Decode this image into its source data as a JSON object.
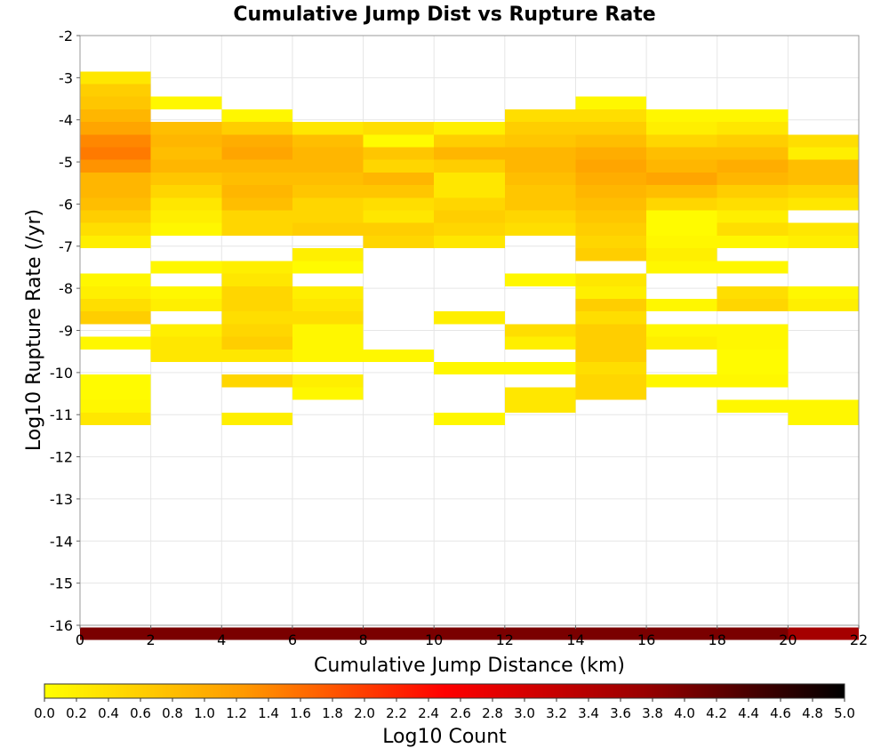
{
  "chart_data": {
    "type": "heatmap",
    "title": "Cumulative Jump Dist vs Rupture Rate",
    "xlabel": "Cumulative Jump Distance (km)",
    "ylabel": "Log10 Rupture Rate (/yr)",
    "xlim": [
      0,
      22
    ],
    "ylim": [
      -16,
      -2
    ],
    "xticks": [
      "0",
      "2",
      "4",
      "6",
      "8",
      "10",
      "12",
      "14",
      "16",
      "18",
      "20",
      "22"
    ],
    "yticks": [
      "-2",
      "-3",
      "-4",
      "-5",
      "-6",
      "-7",
      "-8",
      "-9",
      "-10",
      "-11",
      "-12",
      "-13",
      "-14",
      "-15",
      "-16"
    ],
    "x_bin_width": 2,
    "y_bin_height": 0.3,
    "grid": true,
    "colorbar": {
      "label": "Log10 Count",
      "min": 0,
      "max": 5,
      "ticks": [
        "0.0",
        "0.2",
        "0.4",
        "0.6",
        "0.8",
        "1.0",
        "1.2",
        "1.4",
        "1.6",
        "1.8",
        "2.0",
        "2.2",
        "2.4",
        "2.6",
        "2.8",
        "3.0",
        "3.2",
        "3.4",
        "3.6",
        "3.8",
        "4.0",
        "4.2",
        "4.4",
        "4.6",
        "4.8",
        "5.0"
      ],
      "colors": [
        "#ffff00",
        "#ff9900",
        "#ff0000",
        "#990000",
        "#000000"
      ]
    },
    "columns": [
      {
        "x": 0,
        "cells": [
          [
            -3.0,
            0.3
          ],
          [
            -3.3,
            0.6
          ],
          [
            -3.6,
            0.7
          ],
          [
            -3.9,
            0.9
          ],
          [
            -4.2,
            1.1
          ],
          [
            -4.5,
            1.4
          ],
          [
            -4.8,
            1.5
          ],
          [
            -5.1,
            1.3
          ],
          [
            -5.4,
            0.9
          ],
          [
            -5.7,
            0.9
          ],
          [
            -6.0,
            0.8
          ],
          [
            -6.3,
            0.6
          ],
          [
            -6.6,
            0.4
          ],
          [
            -6.9,
            0.2
          ],
          [
            -7.8,
            0.1
          ],
          [
            -8.1,
            0.2
          ],
          [
            -8.4,
            0.4
          ],
          [
            -8.7,
            0.6
          ],
          [
            -9.3,
            0.1
          ],
          [
            -10.2,
            0.05
          ],
          [
            -10.5,
            0.05
          ],
          [
            -10.8,
            0.1
          ],
          [
            -11.1,
            0.3
          ],
          [
            -16.2,
            4.0
          ]
        ]
      },
      {
        "x": 2,
        "cells": [
          [
            -3.6,
            0.1
          ],
          [
            -4.2,
            0.8
          ],
          [
            -4.5,
            0.9
          ],
          [
            -4.8,
            0.8
          ],
          [
            -5.1,
            0.9
          ],
          [
            -5.4,
            0.7
          ],
          [
            -5.7,
            0.5
          ],
          [
            -6.0,
            0.3
          ],
          [
            -6.3,
            0.2
          ],
          [
            -6.6,
            0.1
          ],
          [
            -7.5,
            0.1
          ],
          [
            -8.1,
            0.1
          ],
          [
            -8.4,
            0.2
          ],
          [
            -9.0,
            0.2
          ],
          [
            -9.3,
            0.3
          ],
          [
            -9.6,
            0.3
          ],
          [
            -16.2,
            4.0
          ]
        ]
      },
      {
        "x": 4,
        "cells": [
          [
            -3.9,
            0.1
          ],
          [
            -4.2,
            0.6
          ],
          [
            -4.5,
            1.0
          ],
          [
            -4.8,
            1.1
          ],
          [
            -5.1,
            0.9
          ],
          [
            -5.4,
            0.8
          ],
          [
            -5.7,
            0.9
          ],
          [
            -6.0,
            0.8
          ],
          [
            -6.3,
            0.5
          ],
          [
            -6.6,
            0.5
          ],
          [
            -7.5,
            0.2
          ],
          [
            -7.8,
            0.3
          ],
          [
            -8.1,
            0.5
          ],
          [
            -8.4,
            0.5
          ],
          [
            -8.7,
            0.4
          ],
          [
            -9.0,
            0.5
          ],
          [
            -9.3,
            0.6
          ],
          [
            -9.6,
            0.3
          ],
          [
            -10.2,
            0.5
          ],
          [
            -11.1,
            0.2
          ],
          [
            -16.2,
            4.0
          ]
        ]
      },
      {
        "x": 6,
        "cells": [
          [
            -4.2,
            0.3
          ],
          [
            -4.5,
            0.8
          ],
          [
            -4.8,
            0.9
          ],
          [
            -5.1,
            0.9
          ],
          [
            -5.4,
            0.8
          ],
          [
            -5.7,
            0.7
          ],
          [
            -6.0,
            0.5
          ],
          [
            -6.3,
            0.5
          ],
          [
            -6.6,
            0.6
          ],
          [
            -7.2,
            0.2
          ],
          [
            -7.5,
            0.05
          ],
          [
            -8.1,
            0.2
          ],
          [
            -8.4,
            0.3
          ],
          [
            -8.7,
            0.4
          ],
          [
            -9.0,
            0.1
          ],
          [
            -9.3,
            0.1
          ],
          [
            -9.6,
            0.1
          ],
          [
            -10.2,
            0.2
          ],
          [
            -10.5,
            0.1
          ],
          [
            -16.2,
            4.0
          ]
        ]
      },
      {
        "x": 8,
        "cells": [
          [
            -4.2,
            0.4
          ],
          [
            -4.5,
            0.05
          ],
          [
            -4.8,
            0.7
          ],
          [
            -5.1,
            0.5
          ],
          [
            -5.4,
            0.9
          ],
          [
            -5.7,
            0.7
          ],
          [
            -6.0,
            0.4
          ],
          [
            -6.3,
            0.3
          ],
          [
            -6.6,
            0.6
          ],
          [
            -6.9,
            0.5
          ],
          [
            -9.6,
            0.1
          ],
          [
            -16.2,
            4.0
          ]
        ]
      },
      {
        "x": 10,
        "cells": [
          [
            -4.2,
            0.2
          ],
          [
            -4.5,
            0.6
          ],
          [
            -4.8,
            0.9
          ],
          [
            -5.1,
            0.6
          ],
          [
            -5.4,
            0.3
          ],
          [
            -5.7,
            0.3
          ],
          [
            -6.0,
            0.5
          ],
          [
            -6.3,
            0.6
          ],
          [
            -6.6,
            0.5
          ],
          [
            -6.9,
            0.3
          ],
          [
            -8.7,
            0.2
          ],
          [
            -9.9,
            0.1
          ],
          [
            -11.1,
            0.1
          ],
          [
            -16.2,
            4.0
          ]
        ]
      },
      {
        "x": 12,
        "cells": [
          [
            -3.9,
            0.4
          ],
          [
            -4.2,
            0.6
          ],
          [
            -4.5,
            0.7
          ],
          [
            -4.8,
            0.9
          ],
          [
            -5.1,
            0.9
          ],
          [
            -5.4,
            0.8
          ],
          [
            -5.7,
            0.7
          ],
          [
            -6.0,
            0.7
          ],
          [
            -6.3,
            0.5
          ],
          [
            -6.6,
            0.4
          ],
          [
            -7.8,
            0.1
          ],
          [
            -9.0,
            0.4
          ],
          [
            -9.3,
            0.2
          ],
          [
            -9.9,
            0.1
          ],
          [
            -10.5,
            0.3
          ],
          [
            -10.8,
            0.3
          ],
          [
            -16.2,
            4.0
          ]
        ]
      },
      {
        "x": 14,
        "cells": [
          [
            -3.6,
            0.1
          ],
          [
            -3.9,
            0.4
          ],
          [
            -4.2,
            0.6
          ],
          [
            -4.5,
            0.8
          ],
          [
            -4.8,
            1.0
          ],
          [
            -5.1,
            1.1
          ],
          [
            -5.4,
            1.0
          ],
          [
            -5.7,
            0.9
          ],
          [
            -6.0,
            0.8
          ],
          [
            -6.3,
            0.7
          ],
          [
            -6.6,
            0.6
          ],
          [
            -6.9,
            0.5
          ],
          [
            -7.2,
            0.6
          ],
          [
            -7.8,
            0.3
          ],
          [
            -8.1,
            0.2
          ],
          [
            -8.4,
            0.6
          ],
          [
            -8.7,
            0.4
          ],
          [
            -9.0,
            0.6
          ],
          [
            -9.3,
            0.6
          ],
          [
            -9.6,
            0.6
          ],
          [
            -9.9,
            0.4
          ],
          [
            -10.2,
            0.5
          ],
          [
            -10.5,
            0.5
          ],
          [
            -16.2,
            4.0
          ]
        ]
      },
      {
        "x": 16,
        "cells": [
          [
            -3.9,
            0.1
          ],
          [
            -4.2,
            0.2
          ],
          [
            -4.5,
            0.5
          ],
          [
            -4.8,
            0.8
          ],
          [
            -5.1,
            0.9
          ],
          [
            -5.4,
            1.1
          ],
          [
            -5.7,
            0.8
          ],
          [
            -6.0,
            0.5
          ],
          [
            -6.3,
            0.05
          ],
          [
            -6.6,
            0.05
          ],
          [
            -6.9,
            0.1
          ],
          [
            -7.2,
            0.2
          ],
          [
            -7.5,
            0.1
          ],
          [
            -8.4,
            0.1
          ],
          [
            -9.0,
            0.1
          ],
          [
            -9.3,
            0.2
          ],
          [
            -10.2,
            0.1
          ],
          [
            -16.2,
            4.0
          ]
        ]
      },
      {
        "x": 18,
        "cells": [
          [
            -3.9,
            0.1
          ],
          [
            -4.2,
            0.3
          ],
          [
            -4.5,
            0.6
          ],
          [
            -4.8,
            0.8
          ],
          [
            -5.1,
            1.0
          ],
          [
            -5.4,
            0.9
          ],
          [
            -5.7,
            0.6
          ],
          [
            -6.0,
            0.4
          ],
          [
            -6.3,
            0.2
          ],
          [
            -6.6,
            0.4
          ],
          [
            -6.9,
            0.1
          ],
          [
            -7.5,
            0.1
          ],
          [
            -8.1,
            0.4
          ],
          [
            -8.4,
            0.5
          ],
          [
            -9.0,
            0.1
          ],
          [
            -9.3,
            0.1
          ],
          [
            -9.6,
            0.05
          ],
          [
            -9.9,
            0.05
          ],
          [
            -10.2,
            0.1
          ],
          [
            -10.8,
            0.1
          ],
          [
            -16.2,
            4.0
          ]
        ]
      },
      {
        "x": 20,
        "cells": [
          [
            -4.5,
            0.4
          ],
          [
            -4.8,
            0.2
          ],
          [
            -5.1,
            0.8
          ],
          [
            -5.4,
            0.8
          ],
          [
            -5.7,
            0.5
          ],
          [
            -6.0,
            0.3
          ],
          [
            -6.6,
            0.3
          ],
          [
            -6.9,
            0.2
          ],
          [
            -8.1,
            0.1
          ],
          [
            -8.4,
            0.2
          ],
          [
            -10.8,
            0.1
          ],
          [
            -11.1,
            0.1
          ],
          [
            -16.2,
            3.6
          ]
        ]
      }
    ]
  }
}
